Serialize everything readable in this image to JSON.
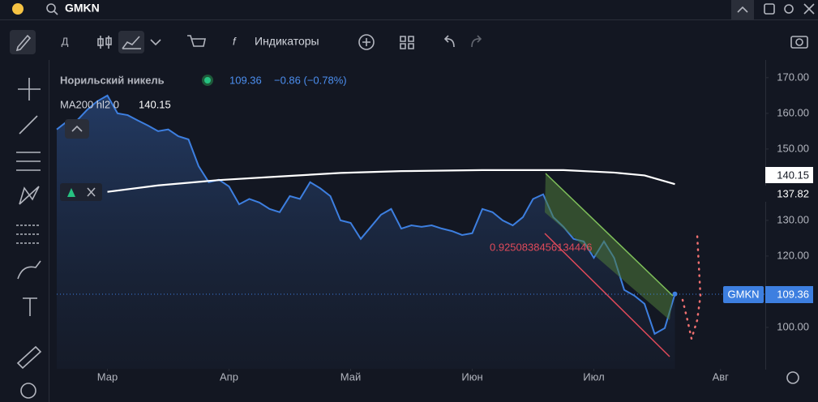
{
  "app": {
    "search": "GMKN",
    "interval": "Д",
    "indicators": "Индикаторы"
  },
  "legend": {
    "name": "Норильский никель",
    "price": "109.36",
    "change": "−0.86 (−0.78%)",
    "ma_name": "MA200 hl2 0",
    "ma_value": "140.15"
  },
  "annotation": "0.9250838456134446",
  "price_labels": {
    "ma": "140.15",
    "other": "137.82",
    "symbol": "GMKN",
    "price": "109.36"
  },
  "chart_data": {
    "type": "line",
    "xlim": [
      0,
      70
    ],
    "xticks": [
      {
        "value": 5,
        "label": "Мар"
      },
      {
        "value": 17,
        "label": "Апр"
      },
      {
        "value": 29,
        "label": "Май"
      },
      {
        "value": 41,
        "label": "Июн"
      },
      {
        "value": 53,
        "label": "Июл"
      },
      {
        "value": 65.5,
        "label": "Авг"
      }
    ],
    "ylim": [
      88.4,
      173.6
    ],
    "yticks": [
      {
        "value": 100,
        "label": "100.00"
      },
      {
        "value": 120,
        "label": "120.00"
      },
      {
        "value": 130,
        "label": "130.00"
      },
      {
        "value": 150,
        "label": "150.00"
      },
      {
        "value": 160,
        "label": "160.00"
      },
      {
        "value": 170,
        "label": "170.00"
      }
    ],
    "series": [
      {
        "name": "GMKN",
        "color": "#3d7fe0",
        "area": true,
        "x": [
          0,
          1,
          2,
          3,
          4,
          5,
          6,
          7,
          8,
          9,
          10,
          11,
          12,
          13,
          14,
          15,
          16,
          17,
          18,
          19,
          20,
          21,
          22,
          23,
          24,
          25,
          26,
          27,
          28,
          29,
          30,
          31,
          32,
          33,
          34,
          35,
          36,
          37,
          38,
          39,
          40,
          41,
          42,
          43,
          44,
          45,
          46,
          47,
          48,
          49,
          50,
          51,
          52,
          53,
          54,
          55,
          56,
          57,
          58,
          59,
          60,
          61
        ],
        "values": [
          155.5,
          157.7,
          158,
          161,
          163.4,
          165,
          160,
          159.5,
          158,
          156.6,
          155,
          155.5,
          153.6,
          152.7,
          145.2,
          140.7,
          141.4,
          139.5,
          134.5,
          136,
          135,
          133.2,
          132.3,
          136.8,
          136,
          140.7,
          139,
          136.8,
          130,
          129.3,
          124.8,
          128.2,
          131.6,
          133.2,
          127.7,
          128.6,
          128.2,
          128.6,
          127.7,
          127,
          125.9,
          126.4,
          133.2,
          132.3,
          130,
          128.6,
          130.9,
          136,
          137.3,
          130.9,
          128.2,
          124.8,
          124.1,
          119.5,
          124.1,
          119.5,
          110.5,
          108.9,
          106.6,
          98.2,
          99.8,
          109.36
        ]
      },
      {
        "name": "MA200 hl2 0",
        "color": "#ffffff",
        "area": false,
        "x": [
          5,
          10,
          16,
          22,
          28,
          34,
          42,
          50,
          55,
          58,
          61
        ],
        "values": [
          138,
          139.8,
          141.3,
          142.3,
          143.3,
          143.8,
          144.1,
          144.1,
          143.4,
          142.6,
          140.15
        ]
      }
    ]
  }
}
